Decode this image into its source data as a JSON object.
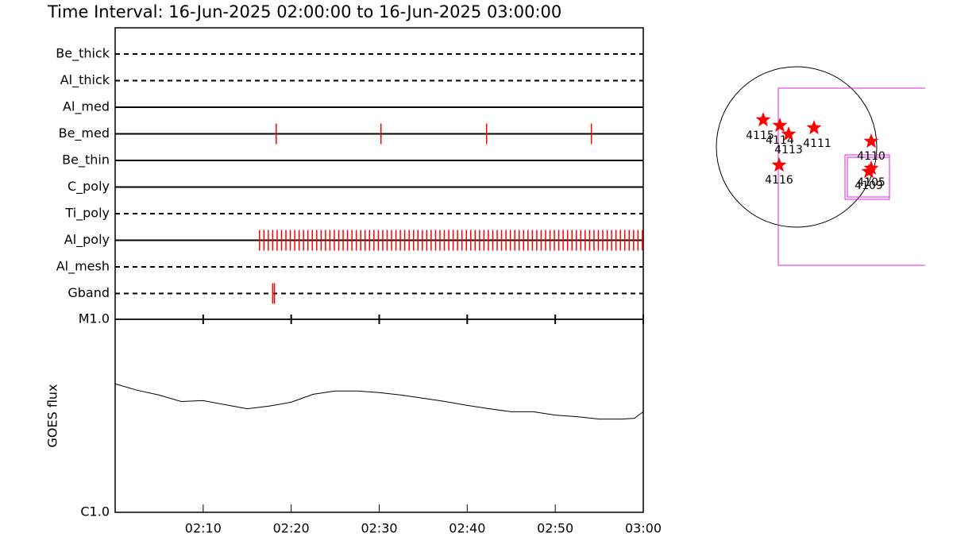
{
  "title": "Time Interval: 16-Jun-2025 02:00:00 to 16-Jun-2025 03:00:00",
  "chart_data": [
    {
      "type": "timeline",
      "xlim": [
        0,
        60
      ],
      "rows": [
        {
          "name": "Be_thick",
          "style": "dashed",
          "events": []
        },
        {
          "name": "Al_thick",
          "style": "dashed",
          "events": []
        },
        {
          "name": "Al_med",
          "style": "solid",
          "events": []
        },
        {
          "name": "Be_med",
          "style": "solid",
          "events": [
            18.3,
            30.2,
            42.2,
            54.1
          ]
        },
        {
          "name": "Be_thin",
          "style": "solid",
          "events": []
        },
        {
          "name": "C_poly",
          "style": "solid",
          "events": []
        },
        {
          "name": "Ti_poly",
          "style": "dashed",
          "events": []
        },
        {
          "name": "Al_poly",
          "style": "solid",
          "events": [
            16.4,
            16.9,
            17.4,
            17.9,
            18.4,
            18.9,
            19.4,
            19.9,
            20.4,
            20.9,
            21.4,
            21.9,
            22.4,
            22.9,
            23.4,
            23.9,
            24.4,
            24.9,
            25.4,
            25.9,
            26.4,
            26.9,
            27.4,
            27.9,
            28.4,
            28.9,
            29.4,
            29.9,
            30.4,
            30.9,
            31.4,
            31.9,
            32.4,
            32.9,
            33.4,
            33.9,
            34.4,
            34.9,
            35.4,
            35.9,
            36.4,
            36.9,
            37.4,
            37.9,
            38.4,
            38.9,
            39.4,
            39.9,
            40.4,
            40.9,
            41.4,
            41.9,
            42.4,
            42.9,
            43.4,
            43.9,
            44.4,
            44.9,
            45.4,
            45.9,
            46.4,
            46.9,
            47.4,
            47.9,
            48.4,
            48.9,
            49.4,
            49.9,
            50.4,
            50.9,
            51.4,
            51.9,
            52.4,
            52.9,
            53.4,
            53.9,
            54.4,
            54.9,
            55.4,
            55.9,
            56.4,
            56.9,
            57.4,
            57.9,
            58.4,
            58.9,
            59.4,
            59.9
          ]
        },
        {
          "name": "Al_mesh",
          "style": "dashed",
          "events": []
        },
        {
          "name": "Gband",
          "style": "dashed",
          "events": [
            17.9,
            18.1
          ]
        }
      ],
      "color": "#ff0000"
    },
    {
      "type": "line",
      "y_label": "GOES flux",
      "log_y": true,
      "color": "#000000",
      "x": [
        0,
        2.5,
        5,
        7.5,
        10,
        12.5,
        15,
        17.5,
        20,
        22.5,
        25,
        27.5,
        30,
        32.5,
        35,
        37.5,
        40,
        42.5,
        45,
        47.5,
        50,
        52.5,
        55,
        57.5,
        59,
        60
      ],
      "values": [
        4.63e-06,
        4.29e-06,
        4.05e-06,
        3.75e-06,
        3.79e-06,
        3.61e-06,
        3.44e-06,
        3.55e-06,
        3.72e-06,
        4.09e-06,
        4.25e-06,
        4.25e-06,
        4.17e-06,
        4.05e-06,
        3.9e-06,
        3.75e-06,
        3.58e-06,
        3.44e-06,
        3.32e-06,
        3.32e-06,
        3.19e-06,
        3.13e-06,
        3.04e-06,
        3.04e-06,
        3.07e-06,
        3.32e-06
      ],
      "xlim": [
        0,
        60
      ],
      "xticks": [
        {
          "value": 10,
          "label": "02:10"
        },
        {
          "value": 20,
          "label": "02:20"
        },
        {
          "value": 30,
          "label": "02:30"
        },
        {
          "value": 40,
          "label": "02:40"
        },
        {
          "value": 50,
          "label": "02:50"
        },
        {
          "value": 60,
          "label": "03:00"
        }
      ],
      "ylim": [
        1e-06,
        1e-05
      ],
      "yticks": [
        {
          "value": 1e-05,
          "label": "M1.0"
        },
        {
          "value": 1e-06,
          "label": "C1.0"
        }
      ]
    }
  ],
  "solar_map": {
    "regions": [
      "4115",
      "4114",
      "4113",
      "4111",
      "4110",
      "4105",
      "4109",
      "4116"
    ]
  }
}
